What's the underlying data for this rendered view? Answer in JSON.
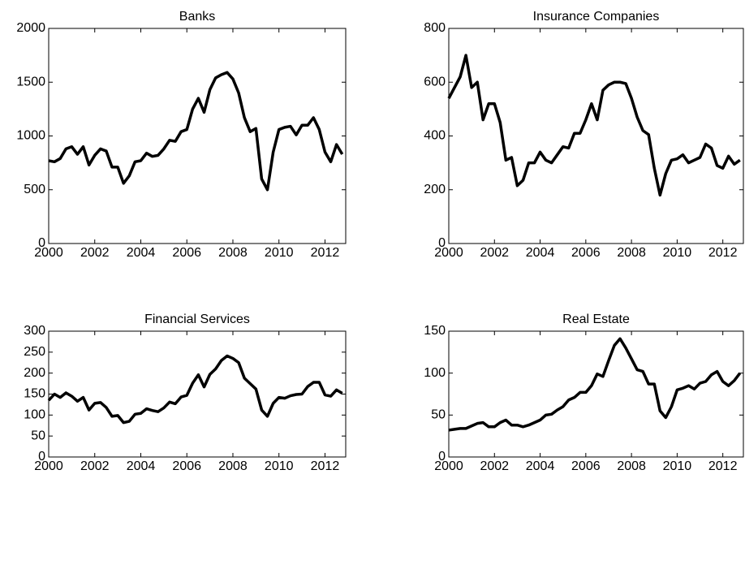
{
  "chart_data": [
    {
      "type": "line",
      "title": "Banks",
      "x": [
        2000,
        2000.25,
        2000.5,
        2000.75,
        2001,
        2001.25,
        2001.5,
        2001.75,
        2002,
        2002.25,
        2002.5,
        2002.75,
        2003,
        2003.25,
        2003.5,
        2003.75,
        2004,
        2004.25,
        2004.5,
        2004.75,
        2005,
        2005.25,
        2005.5,
        2005.75,
        2006,
        2006.25,
        2006.5,
        2006.75,
        2007,
        2007.25,
        2007.5,
        2007.75,
        2008,
        2008.25,
        2008.5,
        2008.75,
        2009,
        2009.25,
        2009.5,
        2009.75,
        2010,
        2010.25,
        2010.5,
        2010.75,
        2011,
        2011.25,
        2011.5,
        2011.75,
        2012,
        2012.25,
        2012.5,
        2012.75
      ],
      "series": [
        {
          "color": "#000000",
          "values": [
            770,
            760,
            790,
            880,
            900,
            830,
            900,
            730,
            820,
            880,
            860,
            710,
            710,
            560,
            630,
            760,
            770,
            840,
            810,
            820,
            880,
            960,
            950,
            1040,
            1060,
            1250,
            1350,
            1220,
            1430,
            1540,
            1570,
            1590,
            1530,
            1400,
            1170,
            1040,
            1070,
            600,
            500,
            850,
            1060,
            1080,
            1090,
            1010,
            1100,
            1100,
            1170,
            1060,
            850,
            760,
            920,
            830
          ]
        }
      ],
      "xlim": [
        2000,
        2012.9
      ],
      "ylim": [
        0,
        2000
      ],
      "xticks": [
        2000,
        2002,
        2004,
        2006,
        2008,
        2010,
        2012
      ],
      "yticks": [
        0,
        500,
        1000,
        1500,
        2000
      ]
    },
    {
      "type": "line",
      "title": "Insurance Companies",
      "x": [
        2000,
        2000.25,
        2000.5,
        2000.75,
        2001,
        2001.25,
        2001.5,
        2001.75,
        2002,
        2002.25,
        2002.5,
        2002.75,
        2003,
        2003.25,
        2003.5,
        2003.75,
        2004,
        2004.25,
        2004.5,
        2004.75,
        2005,
        2005.25,
        2005.5,
        2005.75,
        2006,
        2006.25,
        2006.5,
        2006.75,
        2007,
        2007.25,
        2007.5,
        2007.75,
        2008,
        2008.25,
        2008.5,
        2008.75,
        2009,
        2009.25,
        2009.5,
        2009.75,
        2010,
        2010.25,
        2010.5,
        2010.75,
        2011,
        2011.25,
        2011.5,
        2011.75,
        2012,
        2012.25,
        2012.5,
        2012.75
      ],
      "series": [
        {
          "color": "#000000",
          "values": [
            540,
            580,
            620,
            700,
            580,
            600,
            460,
            520,
            520,
            450,
            310,
            320,
            215,
            235,
            300,
            300,
            340,
            310,
            300,
            330,
            360,
            355,
            410,
            410,
            460,
            520,
            460,
            570,
            590,
            600,
            600,
            595,
            540,
            470,
            420,
            405,
            280,
            180,
            260,
            310,
            315,
            330,
            300,
            310,
            320,
            370,
            355,
            290,
            280,
            325,
            295,
            310
          ]
        }
      ],
      "xlim": [
        2000,
        2012.9
      ],
      "ylim": [
        0,
        800
      ],
      "xticks": [
        2000,
        2002,
        2004,
        2006,
        2008,
        2010,
        2012
      ],
      "yticks": [
        0,
        200,
        400,
        600,
        800
      ]
    },
    {
      "type": "line",
      "title": "Financial Services",
      "x": [
        2000,
        2000.25,
        2000.5,
        2000.75,
        2001,
        2001.25,
        2001.5,
        2001.75,
        2002,
        2002.25,
        2002.5,
        2002.75,
        2003,
        2003.25,
        2003.5,
        2003.75,
        2004,
        2004.25,
        2004.5,
        2004.75,
        2005,
        2005.25,
        2005.5,
        2005.75,
        2006,
        2006.25,
        2006.5,
        2006.75,
        2007,
        2007.25,
        2007.5,
        2007.75,
        2008,
        2008.25,
        2008.5,
        2008.75,
        2009,
        2009.25,
        2009.5,
        2009.75,
        2010,
        2010.25,
        2010.5,
        2010.75,
        2011,
        2011.25,
        2011.5,
        2011.75,
        2012,
        2012.25,
        2012.5,
        2012.75
      ],
      "series": [
        {
          "color": "#000000",
          "values": [
            135,
            150,
            142,
            153,
            145,
            133,
            142,
            112,
            128,
            130,
            118,
            97,
            99,
            82,
            85,
            102,
            104,
            115,
            111,
            108,
            117,
            131,
            127,
            143,
            147,
            176,
            196,
            167,
            197,
            210,
            230,
            241,
            235,
            225,
            188,
            175,
            162,
            112,
            97,
            128,
            142,
            140,
            146,
            149,
            150,
            168,
            178,
            178,
            148,
            145,
            160,
            152
          ]
        }
      ],
      "xlim": [
        2000,
        2012.9
      ],
      "ylim": [
        0,
        300
      ],
      "xticks": [
        2000,
        2002,
        2004,
        2006,
        2008,
        2010,
        2012
      ],
      "yticks": [
        0,
        50,
        100,
        150,
        200,
        250,
        300
      ]
    },
    {
      "type": "line",
      "title": "Real Estate",
      "x": [
        2000,
        2000.25,
        2000.5,
        2000.75,
        2001,
        2001.25,
        2001.5,
        2001.75,
        2002,
        2002.25,
        2002.5,
        2002.75,
        2003,
        2003.25,
        2003.5,
        2003.75,
        2004,
        2004.25,
        2004.5,
        2004.75,
        2005,
        2005.25,
        2005.5,
        2005.75,
        2006,
        2006.25,
        2006.5,
        2006.75,
        2007,
        2007.25,
        2007.5,
        2007.75,
        2008,
        2008.25,
        2008.5,
        2008.75,
        2009,
        2009.25,
        2009.5,
        2009.75,
        2010,
        2010.25,
        2010.5,
        2010.75,
        2011,
        2011.25,
        2011.5,
        2011.75,
        2012,
        2012.25,
        2012.5,
        2012.75
      ],
      "series": [
        {
          "color": "#000000",
          "values": [
            32,
            33,
            34,
            34,
            37,
            40,
            41,
            36,
            36,
            41,
            44,
            38,
            38,
            36,
            38,
            41,
            44,
            50,
            51,
            56,
            60,
            68,
            71,
            77,
            77,
            85,
            99,
            96,
            115,
            133,
            141,
            130,
            117,
            104,
            102,
            87,
            87,
            55,
            47,
            60,
            80,
            82,
            85,
            81,
            88,
            90,
            98,
            102,
            90,
            85,
            91,
            100
          ]
        }
      ],
      "xlim": [
        2000,
        2012.9
      ],
      "ylim": [
        0,
        150
      ],
      "xticks": [
        2000,
        2002,
        2004,
        2006,
        2008,
        2010,
        2012
      ],
      "yticks": [
        0,
        50,
        100,
        150
      ]
    }
  ]
}
